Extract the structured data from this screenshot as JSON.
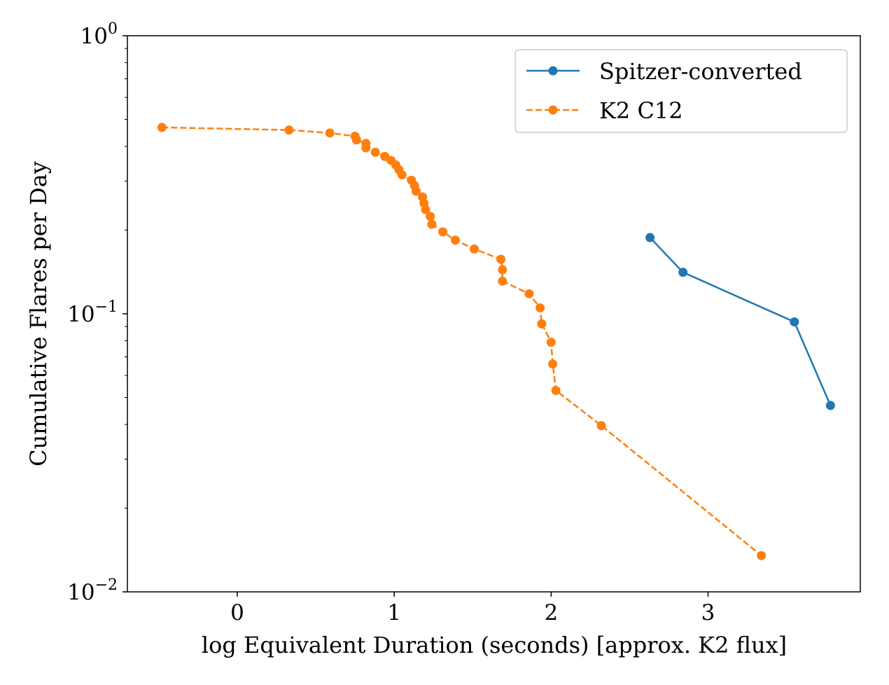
{
  "chart_data": {
    "type": "line",
    "xlabel": "log Equivalent Duration (seconds) [approx. K2 flux]",
    "ylabel": "Cumulative Flares per Day",
    "yscale": "log",
    "xlim": [
      -0.7,
      3.97
    ],
    "ylim": [
      0.01,
      1.0
    ],
    "x_ticks": [
      {
        "value": 0,
        "label": "0"
      },
      {
        "value": 1,
        "label": "1"
      },
      {
        "value": 2,
        "label": "2"
      },
      {
        "value": 3,
        "label": "3"
      }
    ],
    "y_ticks": [
      {
        "value": 0.01,
        "base": "10",
        "exp": "−2"
      },
      {
        "value": 0.1,
        "base": "10",
        "exp": "−1"
      },
      {
        "value": 1.0,
        "base": "10",
        "exp": "0"
      }
    ],
    "grid": false,
    "legend_position": "upper right",
    "series": [
      {
        "name": "Spitzer-converted",
        "color": "#1f77b4",
        "linestyle": "solid",
        "marker": "circle",
        "x": [
          2.63,
          2.84,
          3.55,
          3.78
        ],
        "y": [
          0.188,
          0.141,
          0.0935,
          0.0468
        ]
      },
      {
        "name": "K2 C12",
        "color": "#ff7f0e",
        "linestyle": "dashed",
        "marker": "circle",
        "x": [
          -0.48,
          0.33,
          0.59,
          0.75,
          0.76,
          0.82,
          0.82,
          0.88,
          0.94,
          0.98,
          1.01,
          1.03,
          1.05,
          1.11,
          1.13,
          1.14,
          1.18,
          1.19,
          1.2,
          1.23,
          1.24,
          1.31,
          1.39,
          1.51,
          1.68,
          1.69,
          1.69,
          1.86,
          1.93,
          1.94,
          2.0,
          2.01,
          2.03,
          2.32,
          3.34
        ],
        "y": [
          0.468,
          0.458,
          0.447,
          0.435,
          0.422,
          0.41,
          0.395,
          0.381,
          0.368,
          0.356,
          0.343,
          0.33,
          0.316,
          0.302,
          0.289,
          0.276,
          0.263,
          0.25,
          0.237,
          0.224,
          0.21,
          0.197,
          0.184,
          0.171,
          0.157,
          0.144,
          0.131,
          0.118,
          0.105,
          0.092,
          0.079,
          0.066,
          0.053,
          0.0396,
          0.0135
        ]
      }
    ]
  }
}
